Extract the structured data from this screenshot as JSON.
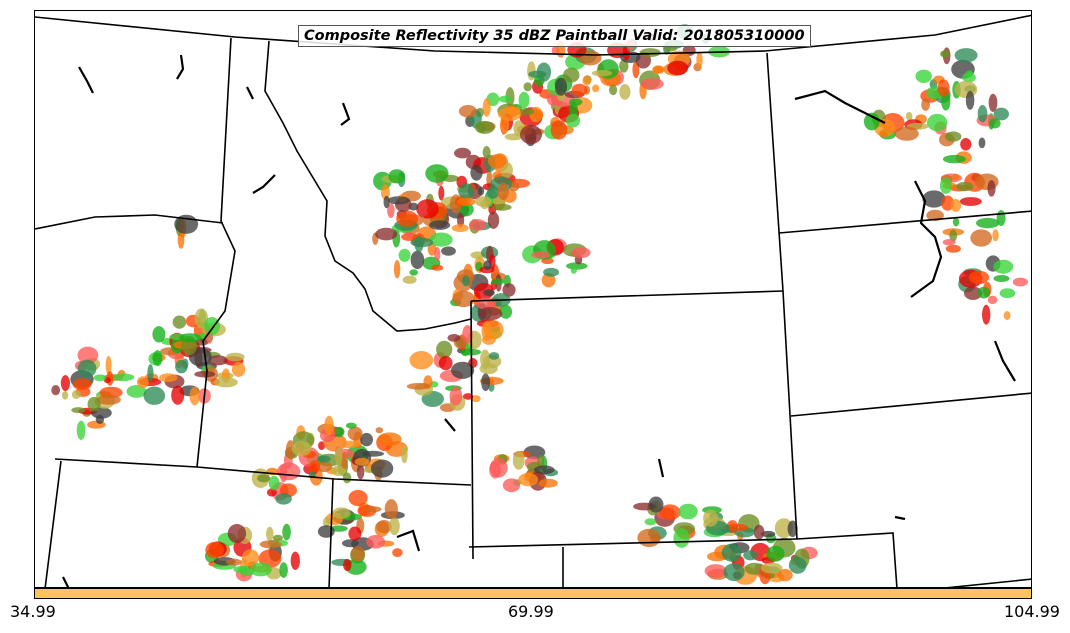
{
  "title": "Composite Reflectivity 35 dBZ Paintball Valid: 201805310000",
  "colorbar": {
    "color": "#ffc261",
    "ticks": [
      "34.99",
      "69.99",
      "104.99"
    ]
  },
  "member_colors": [
    "#f97306",
    "#e50000",
    "#15b01a",
    "#ff4500",
    "#8b2e2e",
    "#6b8e23",
    "#bdb246",
    "#404040",
    "#ff8c1a",
    "#2e8b57",
    "#ff5a5a",
    "#39d439",
    "#d2691e"
  ]
}
